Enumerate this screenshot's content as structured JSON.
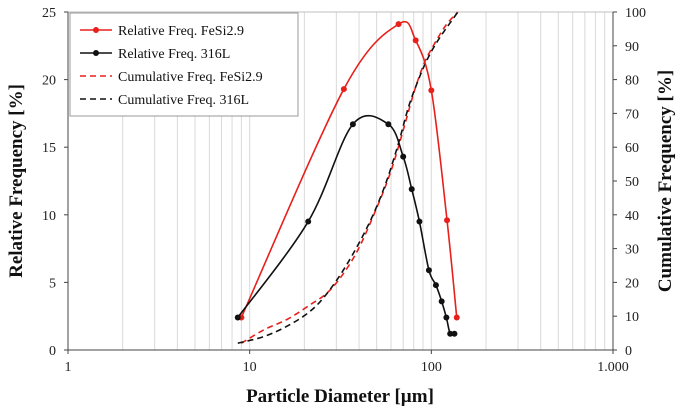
{
  "chart_data": {
    "type": "line",
    "xlabel": "Particle Diameter [µm]",
    "ylabel": "Relative Frequency [%]",
    "y2label": "Cumulative Frequency [%]",
    "x_scale": "log",
    "xlim": [
      1,
      1000
    ],
    "ylim": [
      0,
      25
    ],
    "y2lim": [
      0,
      100
    ],
    "x_ticks": [
      {
        "value": 1,
        "label": "1"
      },
      {
        "value": 10,
        "label": "10"
      },
      {
        "value": 100,
        "label": "100"
      },
      {
        "value": 1000,
        "label": "1.000"
      }
    ],
    "y_ticks": [
      "0",
      "5",
      "10",
      "15",
      "20",
      "25"
    ],
    "y2_ticks": [
      "0",
      "10",
      "20",
      "30",
      "40",
      "50",
      "60",
      "70",
      "80",
      "90",
      "100"
    ],
    "grid": "vertical log gridlines",
    "legend_position": "top-left",
    "series": [
      {
        "name": "Relative Freq. FeSi2.9",
        "axis": "left",
        "color": "#e8201b",
        "style": "solid",
        "markers": true,
        "x": [
          9,
          33,
          66,
          82,
          100,
          122,
          138
        ],
        "y": [
          2.4,
          19.3,
          24.1,
          22.9,
          19.2,
          9.6,
          2.4
        ]
      },
      {
        "name": "Relative Freq. 316L",
        "axis": "left",
        "color": "#111111",
        "style": "solid",
        "markers": true,
        "x": [
          8.6,
          21,
          37,
          58,
          70,
          78,
          86,
          97,
          106,
          114,
          121,
          127,
          134
        ],
        "y": [
          2.4,
          9.5,
          16.7,
          16.7,
          14.3,
          11.9,
          9.5,
          5.9,
          4.8,
          3.6,
          2.4,
          1.2,
          1.2
        ]
      },
      {
        "name": "Cumulative Freq. FeSi2.9",
        "axis": "right",
        "color": "#e8201b",
        "style": "dashed",
        "markers": false,
        "x": [
          9,
          12,
          16,
          21,
          28,
          38,
          50,
          60,
          70,
          80,
          90,
          100,
          120,
          140
        ],
        "y": [
          2,
          6,
          9,
          13,
          18,
          28,
          42,
          53,
          65,
          76,
          84,
          89,
          96,
          100
        ]
      },
      {
        "name": "Cumulative Freq. 316L",
        "axis": "right",
        "color": "#111111",
        "style": "dashed",
        "markers": false,
        "x": [
          8.6,
          12,
          16,
          21,
          26,
          34,
          45,
          55,
          65,
          75,
          85,
          95,
          110,
          140
        ],
        "y": [
          2,
          4,
          7,
          11,
          16,
          25,
          37,
          48,
          60,
          72,
          80,
          86,
          92,
          100
        ]
      }
    ]
  }
}
